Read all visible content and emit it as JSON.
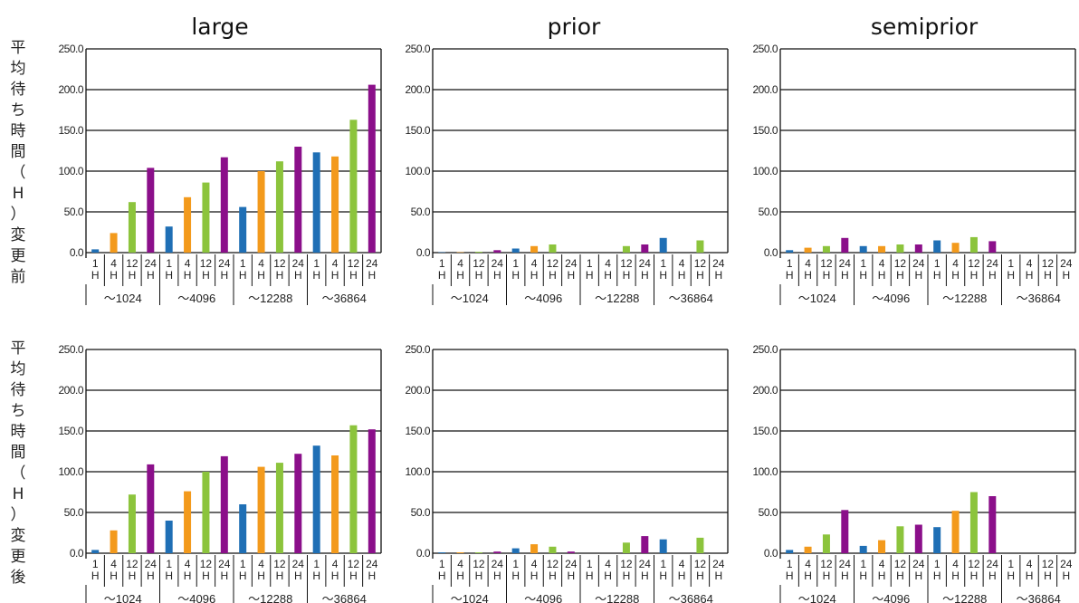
{
  "colors": {
    "1H": "#1f6fb5",
    "4H": "#f39a1c",
    "12H": "#8cc43c",
    "24H": "#8b0f8a"
  },
  "columns": [
    "large",
    "prior",
    "semiprior"
  ],
  "row_labels": [
    "平均待ち時間（H）変更前",
    "平均待ち時間（H）変更後"
  ],
  "category_labels": {
    "hours": [
      "1H",
      "4H",
      "12H",
      "24H"
    ],
    "groups": [
      "～1024",
      "～4096",
      "～12288",
      "～36864"
    ]
  },
  "chart_data": [
    {
      "type": "bar",
      "title": "large",
      "ylabel": "平均待ち時間（H）変更前",
      "ylim": [
        0,
        250
      ],
      "yticks": [
        "0.0",
        "50.0",
        "100.0",
        "150.0",
        "200.0",
        "250.0"
      ],
      "groups": [
        "～1024",
        "～4096",
        "～12288",
        "～36864"
      ],
      "series": [
        {
          "name": "1H",
          "values": [
            4,
            32,
            56,
            123
          ]
        },
        {
          "name": "4H",
          "values": [
            24,
            68,
            100,
            118
          ]
        },
        {
          "name": "12H",
          "values": [
            62,
            86,
            112,
            163
          ]
        },
        {
          "name": "24H",
          "values": [
            104,
            117,
            130,
            206
          ]
        }
      ]
    },
    {
      "type": "bar",
      "title": "prior",
      "ylabel": "平均待ち時間（H）変更前",
      "ylim": [
        0,
        250
      ],
      "yticks": [
        "0.0",
        "50.0",
        "100.0",
        "150.0",
        "200.0",
        "250.0"
      ],
      "groups": [
        "～1024",
        "～4096",
        "～12288",
        "～36864"
      ],
      "series": [
        {
          "name": "1H",
          "values": [
            0.5,
            5,
            0,
            18
          ]
        },
        {
          "name": "4H",
          "values": [
            0.5,
            8,
            0,
            0
          ]
        },
        {
          "name": "12H",
          "values": [
            1,
            10,
            8,
            15
          ]
        },
        {
          "name": "24H",
          "values": [
            3,
            0,
            10,
            0
          ]
        }
      ]
    },
    {
      "type": "bar",
      "title": "semiprior",
      "ylabel": "平均待ち時間（H）変更前",
      "ylim": [
        0,
        250
      ],
      "yticks": [
        "0.0",
        "50.0",
        "100.0",
        "150.0",
        "200.0",
        "250.0"
      ],
      "groups": [
        "～1024",
        "～4096",
        "～12288",
        "～36864"
      ],
      "series": [
        {
          "name": "1H",
          "values": [
            3,
            8,
            15,
            0
          ]
        },
        {
          "name": "4H",
          "values": [
            6,
            8,
            12,
            0
          ]
        },
        {
          "name": "12H",
          "values": [
            8,
            10,
            19,
            0
          ]
        },
        {
          "name": "24H",
          "values": [
            18,
            10,
            14,
            0
          ]
        }
      ]
    },
    {
      "type": "bar",
      "title": "large",
      "ylabel": "平均待ち時間（H）変更後",
      "ylim": [
        0,
        250
      ],
      "yticks": [
        "0.0",
        "50.0",
        "100.0",
        "150.0",
        "200.0",
        "250.0"
      ],
      "groups": [
        "～1024",
        "～4096",
        "～12288",
        "～36864"
      ],
      "series": [
        {
          "name": "1H",
          "values": [
            4,
            40,
            60,
            132
          ]
        },
        {
          "name": "4H",
          "values": [
            28,
            76,
            106,
            120
          ]
        },
        {
          "name": "12H",
          "values": [
            72,
            100,
            111,
            157
          ]
        },
        {
          "name": "24H",
          "values": [
            109,
            119,
            122,
            152
          ]
        }
      ]
    },
    {
      "type": "bar",
      "title": "prior",
      "ylabel": "平均待ち時間（H）変更後",
      "ylim": [
        0,
        250
      ],
      "yticks": [
        "0.0",
        "50.0",
        "100.0",
        "150.0",
        "200.0",
        "250.0"
      ],
      "groups": [
        "～1024",
        "～4096",
        "～12288",
        "～36864"
      ],
      "series": [
        {
          "name": "1H",
          "values": [
            1,
            6,
            0,
            17
          ]
        },
        {
          "name": "4H",
          "values": [
            1,
            11,
            0,
            0
          ]
        },
        {
          "name": "12H",
          "values": [
            1,
            8,
            13,
            19
          ]
        },
        {
          "name": "24H",
          "values": [
            2,
            2,
            21,
            0
          ]
        }
      ]
    },
    {
      "type": "bar",
      "title": "semiprior",
      "ylabel": "平均待ち時間（H）変更後",
      "ylim": [
        0,
        250
      ],
      "yticks": [
        "0.0",
        "50.0",
        "100.0",
        "150.0",
        "200.0",
        "250.0"
      ],
      "groups": [
        "～1024",
        "～4096",
        "～12288",
        "～36864"
      ],
      "series": [
        {
          "name": "1H",
          "values": [
            4,
            9,
            32,
            0
          ]
        },
        {
          "name": "4H",
          "values": [
            8,
            16,
            52,
            0
          ]
        },
        {
          "name": "12H",
          "values": [
            23,
            33,
            75,
            0
          ]
        },
        {
          "name": "24H",
          "values": [
            53,
            35,
            70,
            0
          ]
        }
      ]
    }
  ]
}
